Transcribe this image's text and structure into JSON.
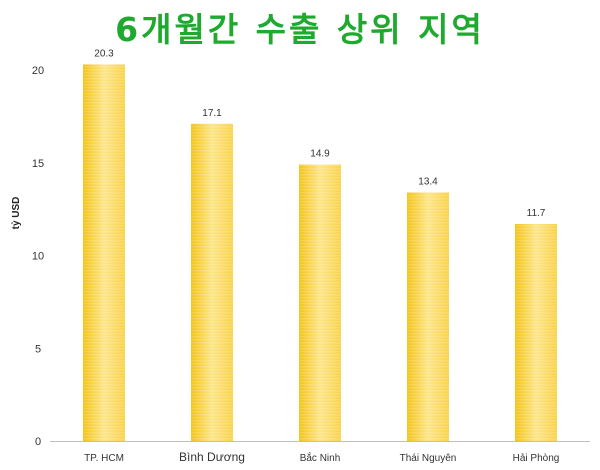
{
  "chart_data": {
    "type": "bar",
    "title": "6개월간 수출 상위 지역",
    "ylabel": "tỷ USD",
    "xlabel": "",
    "categories": [
      "TP. HCM",
      "Bình Dương",
      "Bắc Ninh",
      "Thái Nguyên",
      "Hải Phòng"
    ],
    "values": [
      20.3,
      17.1,
      14.9,
      13.4,
      11.7
    ],
    "value_labels": [
      "20.3",
      "17.1",
      "14.9",
      "13.4",
      "11.7"
    ],
    "ylim": [
      0,
      20
    ],
    "yticks": [
      0,
      5,
      10,
      15,
      20
    ],
    "ytick_labels": [
      "0",
      "5",
      "10",
      "15",
      "20"
    ],
    "grid": false,
    "legend": "none",
    "colors": {
      "title": "#1faa2f",
      "bar_light": "#fde58a",
      "bar_mid": "#f9d24a",
      "bar_dark": "#f3c316",
      "axis": "#bfbfbf"
    }
  }
}
